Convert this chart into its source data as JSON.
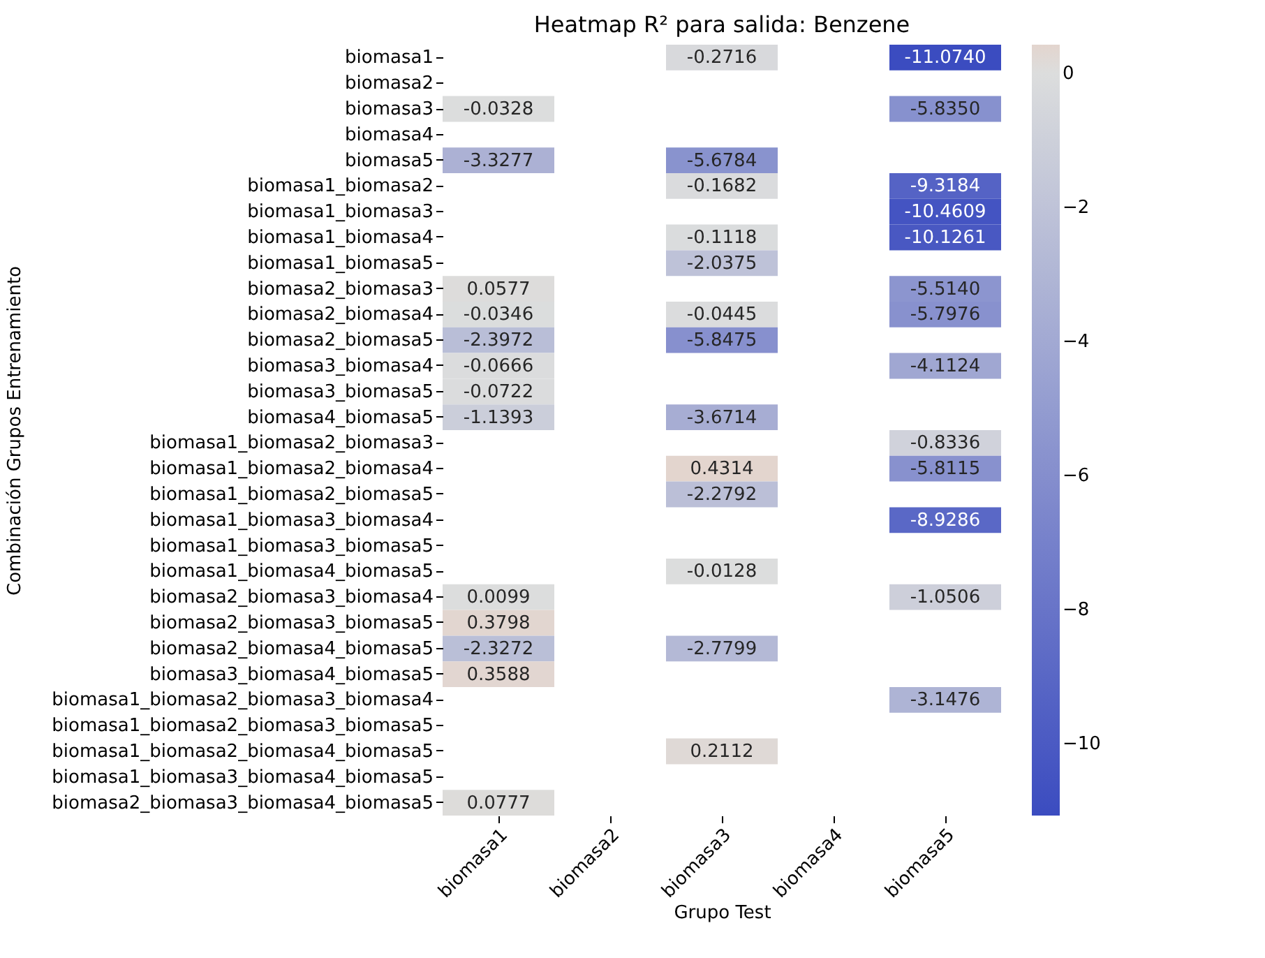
{
  "chart_data": {
    "type": "heatmap",
    "title": "Heatmap R² para salida: Benzene",
    "xlabel": "Grupo Test",
    "ylabel": "Combinación Grupos Entrenamiento",
    "categories": [
      "biomasa1",
      "biomasa2",
      "biomasa3",
      "biomasa4",
      "biomasa5"
    ],
    "y_categories": [
      "biomasa1",
      "biomasa2",
      "biomasa3",
      "biomasa4",
      "biomasa5",
      "biomasa1_biomasa2",
      "biomasa1_biomasa3",
      "biomasa1_biomasa4",
      "biomasa1_biomasa5",
      "biomasa2_biomasa3",
      "biomasa2_biomasa4",
      "biomasa2_biomasa5",
      "biomasa3_biomasa4",
      "biomasa3_biomasa5",
      "biomasa4_biomasa5",
      "biomasa1_biomasa2_biomasa3",
      "biomasa1_biomasa2_biomasa4",
      "biomasa1_biomasa2_biomasa5",
      "biomasa1_biomasa3_biomasa4",
      "biomasa1_biomasa3_biomasa5",
      "biomasa1_biomasa4_biomasa5",
      "biomasa2_biomasa3_biomasa4",
      "biomasa2_biomasa3_biomasa5",
      "biomasa2_biomasa4_biomasa5",
      "biomasa3_biomasa4_biomasa5",
      "biomasa1_biomasa2_biomasa3_biomasa4",
      "biomasa1_biomasa2_biomasa3_biomasa5",
      "biomasa1_biomasa2_biomasa4_biomasa5",
      "biomasa1_biomasa3_biomasa4_biomasa5",
      "biomasa2_biomasa3_biomasa4_biomasa5"
    ],
    "cells": [
      [
        null,
        null,
        -0.2716,
        null,
        -11.074
      ],
      [
        null,
        null,
        null,
        null,
        null
      ],
      [
        -0.0328,
        null,
        null,
        null,
        -5.835
      ],
      [
        null,
        null,
        null,
        null,
        null
      ],
      [
        -3.3277,
        null,
        -5.6784,
        null,
        null
      ],
      [
        null,
        null,
        -0.1682,
        null,
        -9.3184
      ],
      [
        null,
        null,
        null,
        null,
        -10.4609
      ],
      [
        null,
        null,
        -0.1118,
        null,
        -10.1261
      ],
      [
        null,
        null,
        -2.0375,
        null,
        null
      ],
      [
        0.0577,
        null,
        null,
        null,
        -5.514
      ],
      [
        -0.0346,
        null,
        -0.0445,
        null,
        -5.7976
      ],
      [
        -2.3972,
        null,
        -5.8475,
        null,
        null
      ],
      [
        -0.0666,
        null,
        null,
        null,
        -4.1124
      ],
      [
        -0.0722,
        null,
        null,
        null,
        null
      ],
      [
        -1.1393,
        null,
        -3.6714,
        null,
        null
      ],
      [
        null,
        null,
        null,
        null,
        -0.8336
      ],
      [
        null,
        null,
        0.4314,
        null,
        -5.8115
      ],
      [
        null,
        null,
        -2.2792,
        null,
        null
      ],
      [
        null,
        null,
        null,
        null,
        -8.9286
      ],
      [
        null,
        null,
        null,
        null,
        null
      ],
      [
        null,
        null,
        -0.0128,
        null,
        null
      ],
      [
        0.0099,
        null,
        null,
        null,
        -1.0506
      ],
      [
        0.3798,
        null,
        null,
        null,
        null
      ],
      [
        -2.3272,
        null,
        -2.7799,
        null,
        null
      ],
      [
        0.3588,
        null,
        null,
        null,
        null
      ],
      [
        null,
        null,
        null,
        null,
        -3.1476
      ],
      [
        null,
        null,
        null,
        null,
        null
      ],
      [
        null,
        null,
        0.2112,
        null,
        null
      ],
      [
        null,
        null,
        null,
        null,
        null
      ],
      [
        0.0777,
        null,
        null,
        null,
        null
      ]
    ],
    "cell_labels": [
      [
        null,
        null,
        "-0.2716",
        null,
        "-11.0740"
      ],
      [
        null,
        null,
        null,
        null,
        null
      ],
      [
        "-0.0328",
        null,
        null,
        null,
        "-5.8350"
      ],
      [
        null,
        null,
        null,
        null,
        null
      ],
      [
        "-3.3277",
        null,
        "-5.6784",
        null,
        null
      ],
      [
        null,
        null,
        "-0.1682",
        null,
        "-9.3184"
      ],
      [
        null,
        null,
        null,
        null,
        "-10.4609"
      ],
      [
        null,
        null,
        "-0.1118",
        null,
        "-10.1261"
      ],
      [
        null,
        null,
        "-2.0375",
        null,
        null
      ],
      [
        "0.0577",
        null,
        null,
        null,
        "-5.5140"
      ],
      [
        "-0.0346",
        null,
        "-0.0445",
        null,
        "-5.7976"
      ],
      [
        "-2.3972",
        null,
        "-5.8475",
        null,
        null
      ],
      [
        "-0.0666",
        null,
        null,
        null,
        "-4.1124"
      ],
      [
        "-0.0722",
        null,
        null,
        null,
        null
      ],
      [
        "-1.1393",
        null,
        "-3.6714",
        null,
        null
      ],
      [
        null,
        null,
        null,
        null,
        "-0.8336"
      ],
      [
        null,
        null,
        "0.4314",
        null,
        "-5.8115"
      ],
      [
        null,
        null,
        "-2.2792",
        null,
        null
      ],
      [
        null,
        null,
        null,
        null,
        "-8.9286"
      ],
      [
        null,
        null,
        null,
        null,
        null
      ],
      [
        null,
        null,
        "-0.0128",
        null,
        null
      ],
      [
        "0.0099",
        null,
        null,
        null,
        "-1.0506"
      ],
      [
        "0.3798",
        null,
        null,
        null,
        null
      ],
      [
        "-2.3272",
        null,
        "-2.7799",
        null,
        null
      ],
      [
        "0.3588",
        null,
        null,
        null,
        null
      ],
      [
        null,
        null,
        null,
        null,
        "-3.1476"
      ],
      [
        null,
        null,
        null,
        null,
        null
      ],
      [
        null,
        null,
        "0.2112",
        null,
        null
      ],
      [
        null,
        null,
        null,
        null,
        null
      ],
      [
        "0.0777",
        null,
        null,
        null,
        null
      ]
    ],
    "clim": [
      -11.074,
      0.4314
    ],
    "cticks": [
      -10,
      -8,
      -6,
      -4,
      -2,
      0
    ]
  }
}
